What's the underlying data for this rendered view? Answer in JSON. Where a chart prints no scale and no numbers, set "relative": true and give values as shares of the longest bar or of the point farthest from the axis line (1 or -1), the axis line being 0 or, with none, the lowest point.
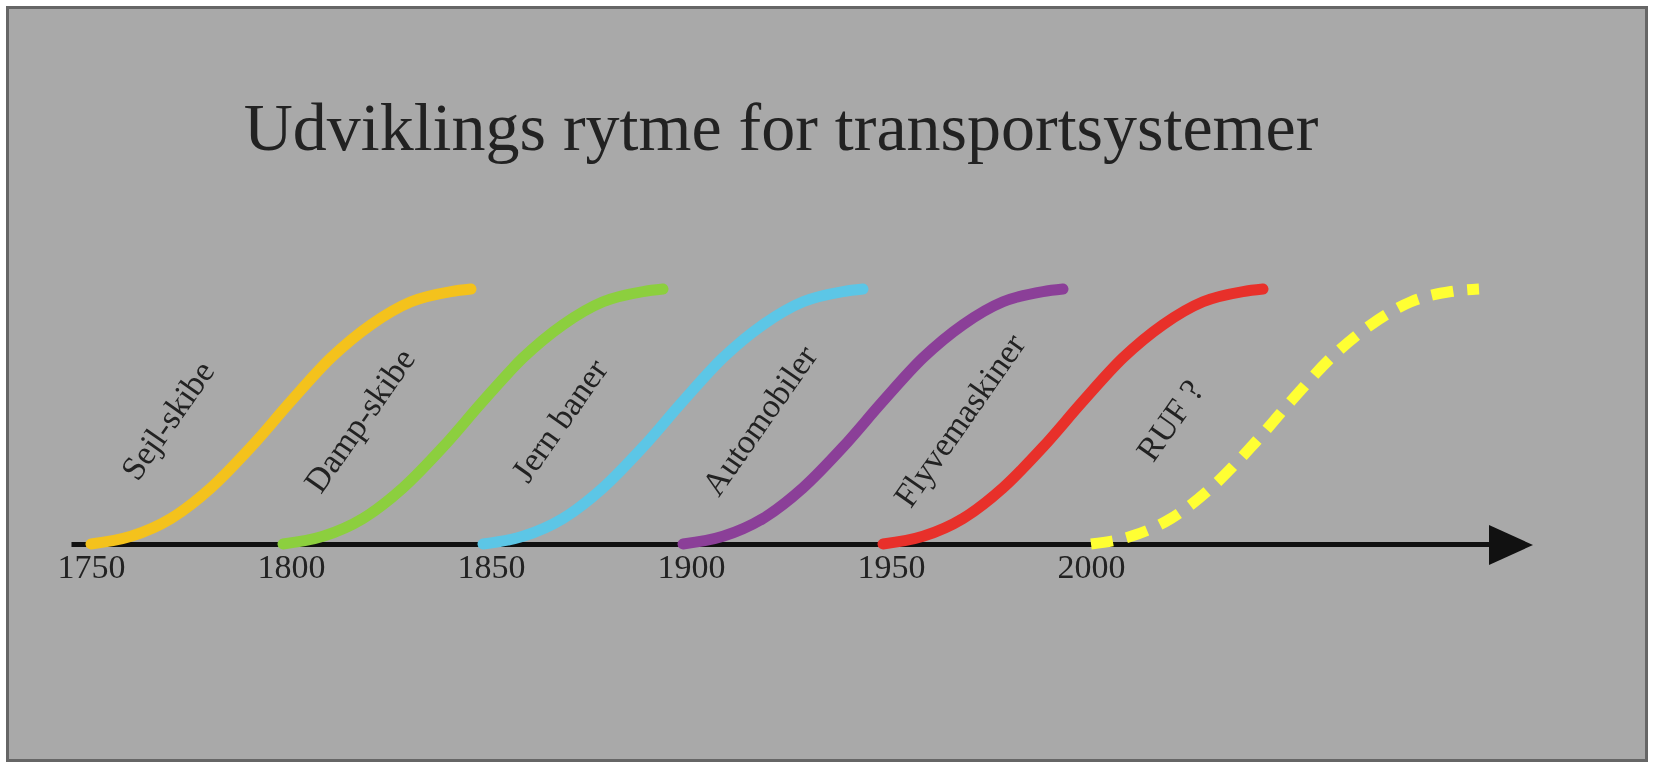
{
  "chart_data": {
    "type": "line",
    "title": "Udviklings rytme for transportsystemer",
    "relative": true,
    "xlim": [
      1745,
      2100
    ],
    "xticks": [
      1750,
      1800,
      1850,
      1900,
      1950,
      2000
    ],
    "grid": false,
    "series": [
      {
        "name": "Sejl-skibe",
        "color": "#f4c21c",
        "x": [
          1750,
          1760,
          1770,
          1780,
          1790,
          1800,
          1810,
          1820,
          1830,
          1840,
          1845
        ],
        "values": [
          0,
          0.03,
          0.1,
          0.22,
          0.38,
          0.56,
          0.73,
          0.86,
          0.95,
          0.99,
          1
        ]
      },
      {
        "name": "Damp-skibe",
        "color": "#8ccf3e",
        "x": [
          1798,
          1808,
          1818,
          1828,
          1838,
          1848,
          1858,
          1868,
          1878,
          1888,
          1893
        ],
        "values": [
          0,
          0.03,
          0.1,
          0.22,
          0.38,
          0.56,
          0.73,
          0.86,
          0.95,
          0.99,
          1
        ]
      },
      {
        "name": "Jern baner",
        "color": "#5cc6e6",
        "x": [
          1848,
          1858,
          1868,
          1878,
          1888,
          1898,
          1908,
          1918,
          1928,
          1938,
          1943
        ],
        "values": [
          0,
          0.03,
          0.1,
          0.22,
          0.38,
          0.56,
          0.73,
          0.86,
          0.95,
          0.99,
          1
        ]
      },
      {
        "name": "Automobiler",
        "color": "#8b3f98",
        "x": [
          1898,
          1908,
          1918,
          1928,
          1938,
          1948,
          1958,
          1968,
          1978,
          1988,
          1993
        ],
        "values": [
          0,
          0.03,
          0.1,
          0.22,
          0.38,
          0.56,
          0.73,
          0.86,
          0.95,
          0.99,
          1
        ]
      },
      {
        "name": "Flyvemaskiner",
        "color": "#e8302a",
        "x": [
          1948,
          1958,
          1968,
          1978,
          1988,
          1998,
          2008,
          2018,
          2028,
          2038,
          2043
        ],
        "values": [
          0,
          0.03,
          0.1,
          0.22,
          0.38,
          0.56,
          0.73,
          0.86,
          0.95,
          0.99,
          1
        ]
      },
      {
        "name": "RUF ?",
        "color": "#ffff33",
        "line_style": "dashed",
        "x": [
          2000,
          2010,
          2020,
          2030,
          2040,
          2050,
          2060,
          2070,
          2080,
          2090,
          2097
        ],
        "values": [
          0,
          0.03,
          0.1,
          0.22,
          0.38,
          0.56,
          0.73,
          0.86,
          0.95,
          0.99,
          1
        ]
      }
    ]
  }
}
